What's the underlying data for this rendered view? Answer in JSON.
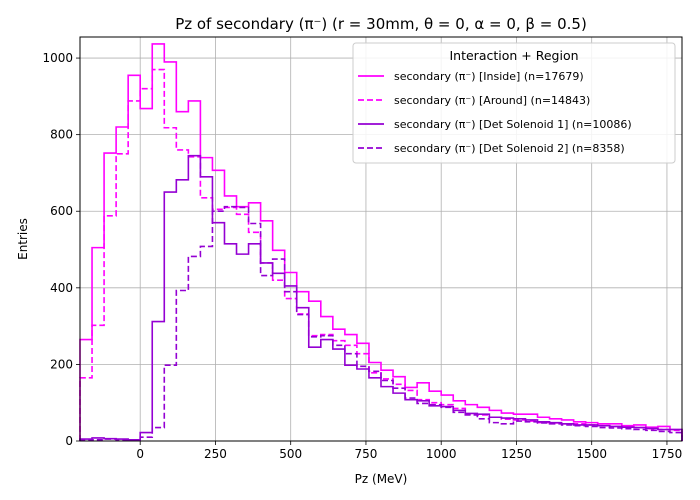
{
  "chart_data": {
    "type": "line",
    "title": "Pz of secondary (π⁻) (r = 30mm, θ = 0, α = 0, β = 0.5)",
    "xlabel": "Pz (MeV)",
    "ylabel": "Entries",
    "xlim": [
      -200,
      1800
    ],
    "ylim": [
      0,
      1055
    ],
    "xticks": [
      0,
      250,
      500,
      750,
      1000,
      1250,
      1500,
      1750
    ],
    "yticks": [
      0,
      200,
      400,
      600,
      800,
      1000
    ],
    "grid": true,
    "legend_title": "Interaction + Region",
    "legend_position": "top-right",
    "bin_edges": [
      -200,
      -160,
      -120,
      -80,
      -40,
      0,
      40,
      80,
      120,
      160,
      200,
      240,
      280,
      320,
      360,
      400,
      440,
      480,
      520,
      560,
      600,
      640,
      680,
      720,
      760,
      800,
      840,
      880,
      920,
      960,
      1000,
      1040,
      1080,
      1120,
      1160,
      1200,
      1240,
      1280,
      1320,
      1360,
      1400,
      1440,
      1480,
      1520,
      1560,
      1600,
      1640,
      1680,
      1720,
      1760,
      1800
    ],
    "series": [
      {
        "name": "secondary (π⁻) [Inside] (n=17679)",
        "color": "#ff00ff",
        "dash": "solid",
        "values": [
          265,
          505,
          752,
          820,
          955,
          868,
          1037,
          990,
          860,
          888,
          740,
          707,
          640,
          612,
          622,
          575,
          498,
          440,
          390,
          365,
          325,
          292,
          278,
          255,
          205,
          185,
          168,
          140,
          152,
          130,
          120,
          105,
          95,
          88,
          80,
          73,
          70,
          70,
          62,
          58,
          55,
          50,
          48,
          45,
          45,
          40,
          42,
          36,
          38,
          30
        ]
      },
      {
        "name": "secondary (π⁻) [Around] (n=14843)",
        "color": "#ff00ff",
        "dash": "dashed",
        "values": [
          165,
          302,
          588,
          750,
          888,
          920,
          970,
          818,
          760,
          742,
          635,
          605,
          610,
          592,
          545,
          465,
          420,
          372,
          332,
          275,
          278,
          262,
          250,
          228,
          178,
          162,
          148,
          132,
          108,
          100,
          95,
          85,
          70,
          68,
          62,
          57,
          55,
          52,
          48,
          47,
          45,
          45,
          42,
          40,
          38,
          36,
          35,
          32,
          30,
          28
        ]
      },
      {
        "name": "secondary (π⁻) [Det Solenoid 1] (n=10086)",
        "color": "#9400d3",
        "dash": "solid",
        "values": [
          5,
          8,
          6,
          5,
          3,
          22,
          312,
          650,
          682,
          745,
          690,
          570,
          515,
          488,
          515,
          465,
          438,
          405,
          348,
          245,
          265,
          240,
          198,
          188,
          165,
          142,
          125,
          108,
          105,
          92,
          90,
          80,
          72,
          70,
          62,
          60,
          58,
          55,
          50,
          48,
          45,
          42,
          42,
          40,
          38,
          36,
          35,
          33,
          30,
          30
        ]
      },
      {
        "name": "secondary (π⁻) [Det Solenoid 2] (n=8358)",
        "color": "#9400d3",
        "dash": "dashed",
        "values": [
          2,
          3,
          5,
          3,
          3,
          10,
          35,
          198,
          393,
          482,
          508,
          600,
          612,
          610,
          568,
          432,
          475,
          390,
          330,
          272,
          275,
          250,
          228,
          195,
          182,
          158,
          138,
          112,
          98,
          95,
          88,
          75,
          68,
          58,
          48,
          45,
          52,
          50,
          47,
          45,
          42,
          40,
          38,
          35,
          34,
          32,
          30,
          28,
          25,
          22
        ]
      }
    ]
  }
}
